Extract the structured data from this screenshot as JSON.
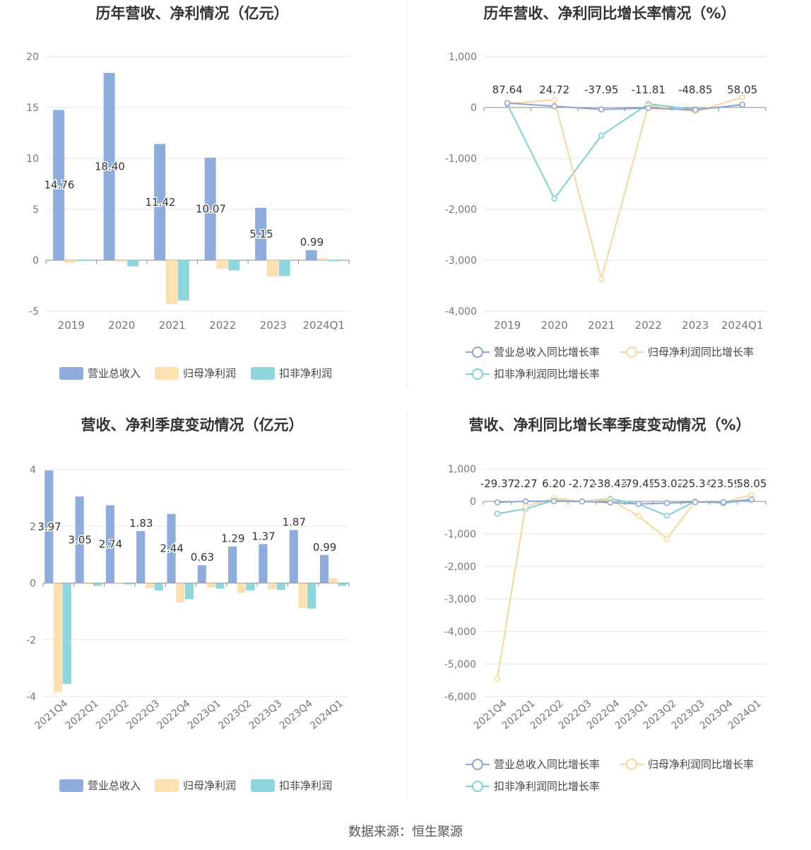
{
  "source": "数据来源：恒生聚源",
  "colors": {
    "revenue": "#8eacdc",
    "parent_profit": "#fde0b0",
    "deducted_profit": "#8fd5dc",
    "rev_growth": "#8ca3d6",
    "parent_growth": "#fbd698",
    "deducted_growth": "#7fd0d6"
  },
  "chart_data": [
    {
      "type": "bar",
      "title": "历年营收、净利情况（亿元）",
      "categories": [
        "2019",
        "2020",
        "2021",
        "2022",
        "2023",
        "2024Q1"
      ],
      "ylim": [
        -5,
        20
      ],
      "yticks": [
        "20",
        "15",
        "10",
        "5",
        "0",
        "-5"
      ],
      "series": [
        {
          "name": "营业总收入",
          "values": [
            14.76,
            18.4,
            11.42,
            10.07,
            5.15,
            0.99
          ],
          "labels": [
            "14.76",
            "18.40",
            "11.42",
            "10.07",
            "5.15",
            "0.99"
          ]
        },
        {
          "name": "归母净利润",
          "values": [
            -0.25,
            -0.15,
            -4.3,
            -0.85,
            -1.6,
            0.2
          ]
        },
        {
          "name": "扣非净利润",
          "values": [
            -0.05,
            -0.6,
            -3.95,
            -1.0,
            -1.55,
            -0.1
          ]
        }
      ],
      "legend": "bottom",
      "grid": true
    },
    {
      "type": "line",
      "title": "历年营收、净利同比增长率情况（%）",
      "categories": [
        "2019",
        "2020",
        "2021",
        "2022",
        "2023",
        "2024Q1"
      ],
      "ylim": [
        -4000,
        1000
      ],
      "yticks": [
        "1,000",
        "0",
        "-1,000",
        "-2,000",
        "-3,000",
        "-4,000"
      ],
      "series": [
        {
          "name": "营业总收入同比增长率",
          "values": [
            87.64,
            24.72,
            -37.95,
            -11.81,
            -48.85,
            58.05
          ],
          "labels": [
            "87.64",
            "24.72",
            "-37.95",
            "-11.81",
            "-48.85",
            "58.05"
          ]
        },
        {
          "name": "归母净利润同比增长率",
          "values": [
            80,
            150,
            -3370,
            40,
            -80,
            200
          ]
        },
        {
          "name": "扣非净利润同比增长率",
          "values": [
            60,
            -1790,
            -550,
            70,
            -40,
            50
          ]
        }
      ],
      "legend": "bottom",
      "grid": true
    },
    {
      "type": "bar",
      "title": "营收、净利季度变动情况（亿元）",
      "categories": [
        "2021Q4",
        "2022Q1",
        "2022Q2",
        "2022Q3",
        "2022Q4",
        "2023Q1",
        "2023Q2",
        "2023Q3",
        "2023Q4",
        "2024Q1"
      ],
      "ylim": [
        -4,
        4
      ],
      "yticks": [
        "4",
        "2",
        "0",
        "-2",
        "-4"
      ],
      "series": [
        {
          "name": "营业总收入",
          "values": [
            3.97,
            3.05,
            2.74,
            1.83,
            2.44,
            0.63,
            1.29,
            1.37,
            1.87,
            0.99
          ],
          "labels": [
            "3.97",
            "3.05",
            "2.74",
            "1.83",
            "2.44",
            "0.63",
            "1.29",
            "1.37",
            "1.87",
            "0.99"
          ]
        },
        {
          "name": "归母净利润",
          "values": [
            -3.85,
            -0.05,
            -0.03,
            -0.18,
            -0.68,
            -0.15,
            -0.35,
            -0.22,
            -0.88,
            0.18
          ]
        },
        {
          "name": "扣非净利润",
          "values": [
            -3.55,
            -0.1,
            -0.05,
            -0.26,
            -0.57,
            -0.2,
            -0.26,
            -0.24,
            -0.9,
            -0.1
          ]
        }
      ],
      "legend": "bottom",
      "grid": true
    },
    {
      "type": "line",
      "title": "营收、净利同比增长率季度变动情况（%）",
      "categories": [
        "2021Q4",
        "2022Q1",
        "2022Q2",
        "2022Q3",
        "2022Q4",
        "2023Q1",
        "2023Q2",
        "2023Q3",
        "2023Q4",
        "2024Q1"
      ],
      "ylim": [
        -6000,
        1000
      ],
      "yticks": [
        "1,000",
        "0",
        "-1,000",
        "-2,000",
        "-3,000",
        "-4,000",
        "-5,000",
        "-6,000"
      ],
      "series": [
        {
          "name": "营业总收入同比增长率",
          "values": [
            -29.37,
            2.27,
            6.2,
            -2.72,
            -38.43,
            -79.45,
            -53.02,
            -25.34,
            -23.59,
            58.05
          ],
          "labels": [
            "-29.37",
            "2.27",
            "6.20",
            "-2.72",
            "-38.43",
            "-79.45",
            "-53.02",
            "-25.34",
            "-23.59",
            "58.05"
          ]
        },
        {
          "name": "归母净利润同比增长率",
          "values": [
            -5450,
            -150,
            100,
            0,
            50,
            -450,
            -1150,
            -10,
            -30,
            200
          ]
        },
        {
          "name": "扣非净利润同比增长率",
          "values": [
            -380,
            -230,
            30,
            0,
            80,
            -80,
            -440,
            0,
            -60,
            50
          ]
        }
      ],
      "legend": "bottom",
      "grid": true
    }
  ]
}
